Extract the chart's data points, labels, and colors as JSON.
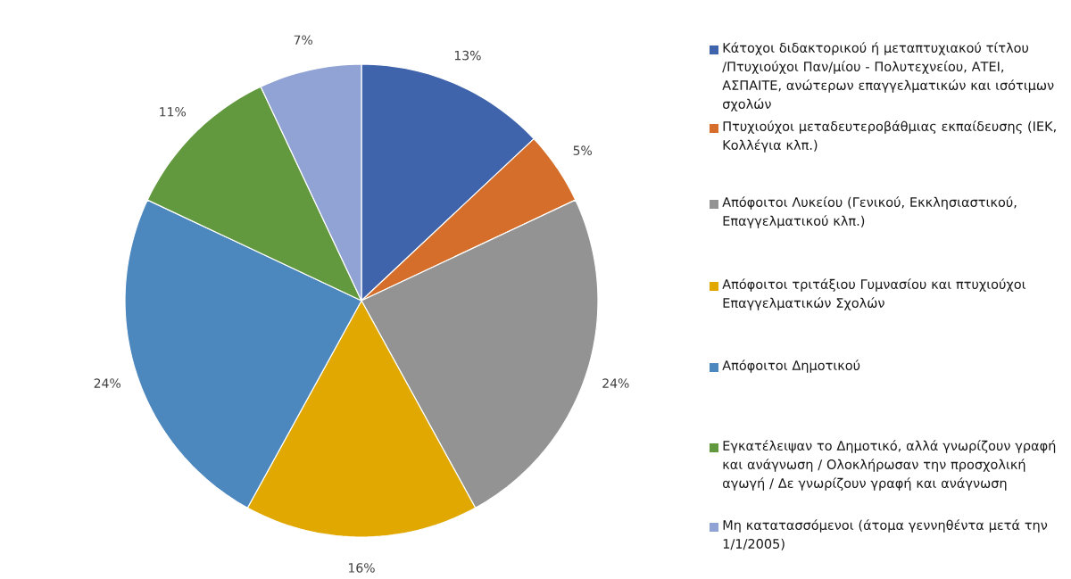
{
  "chart_data": {
    "type": "pie",
    "categories": [
      "Κάτοχοι διδακτορικού ή μεταπτυχιακού τίτλου /Πτυχιούχοι Παν/μίου - Πολυτεχνείου, ΑΤΕΙ, ΑΣΠΑΙΤΕ, ανώτερων επαγγελματικών  και ισότιμων σχολών",
      "Πτυχιούχοι μεταδευτεροβάθμιας εκπαίδευσης (ΙΕΚ, Κολλέγια κλπ.)",
      "Απόφοιτοι Λυκείου (Γενικού, Εκκλησιαστικού, Επαγγελματικού κλπ.)",
      "Απόφοιτοι τριτάξιου Γυμνασίου και πτυχιούχοι Επαγγελματικών Σχολών",
      "Απόφοιτοι Δημοτικού",
      "Εγκατέλειψαν το Δημοτικό, αλλά γνωρίζουν γραφή και ανάγνωση / Ολοκλήρωσαν την προσχολική αγωγή / Δε γνωρίζουν γραφή και ανάγνωση",
      "Μη κατατασσόμενοι (άτομα γεννηθέντα μετά την 1/1/2005)"
    ],
    "values": [
      13,
      5,
      24,
      16,
      24,
      11,
      7
    ],
    "value_labels": [
      "13%",
      "5%",
      "24%",
      "16%",
      "24%",
      "11%",
      "7%"
    ],
    "colors": [
      "#4064ac",
      "#d46e2a",
      "#939393",
      "#e0a800",
      "#4c87be",
      "#62993f",
      "#90a3d4"
    ],
    "legend": "right"
  }
}
